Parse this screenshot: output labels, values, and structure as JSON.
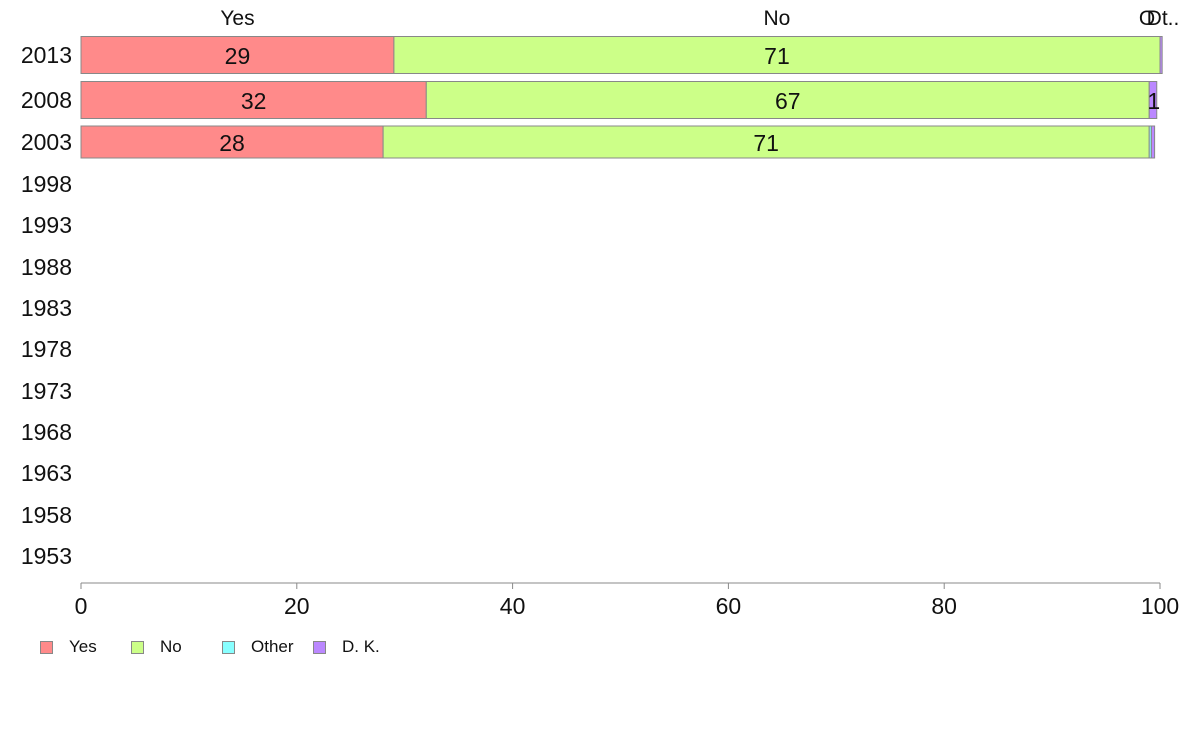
{
  "chart_data": {
    "type": "bar",
    "orientation": "horizontal",
    "stacked": true,
    "categories": [
      "2013",
      "2008",
      "2003",
      "1998",
      "1993",
      "1988",
      "1983",
      "1978",
      "1973",
      "1968",
      "1963",
      "1958",
      "1953"
    ],
    "series": [
      {
        "name": "Yes",
        "color": "#ff8a8a",
        "values": [
          29,
          32,
          28,
          null,
          null,
          null,
          null,
          null,
          null,
          null,
          null,
          null,
          null
        ]
      },
      {
        "name": "No",
        "color": "#ccff88",
        "values": [
          71,
          67,
          71,
          null,
          null,
          null,
          null,
          null,
          null,
          null,
          null,
          null,
          null
        ]
      },
      {
        "name": "Other",
        "color": "#88ffff",
        "values": [
          0,
          0,
          0.2,
          null,
          null,
          null,
          null,
          null,
          null,
          null,
          null,
          null,
          null
        ]
      },
      {
        "name": "D. K.",
        "color": "#bb88ff",
        "values": [
          0.2,
          0.7,
          0.3,
          null,
          null,
          null,
          null,
          null,
          null,
          null,
          null,
          null,
          null
        ]
      }
    ],
    "data_labels": [
      {
        "category": "2013",
        "labels": [
          "29",
          "71",
          "",
          ""
        ]
      },
      {
        "category": "2008",
        "labels": [
          "32",
          "67",
          "",
          "1"
        ]
      },
      {
        "category": "2003",
        "labels": [
          "28",
          "71",
          "",
          ""
        ]
      }
    ],
    "top_labels": [
      "Yes",
      "No",
      "O",
      "Dt.."
    ],
    "xlim": [
      0,
      100
    ],
    "xticks": [
      "0",
      "20",
      "40",
      "60",
      "80",
      "100"
    ],
    "legend_position": "bottom-left",
    "grid": false
  },
  "legend": [
    {
      "label": "Yes",
      "color": "#ff8a8a"
    },
    {
      "label": "No",
      "color": "#ccff88"
    },
    {
      "label": "Other",
      "color": "#88ffff"
    },
    {
      "label": "D. K.",
      "color": "#bb88ff"
    }
  ]
}
